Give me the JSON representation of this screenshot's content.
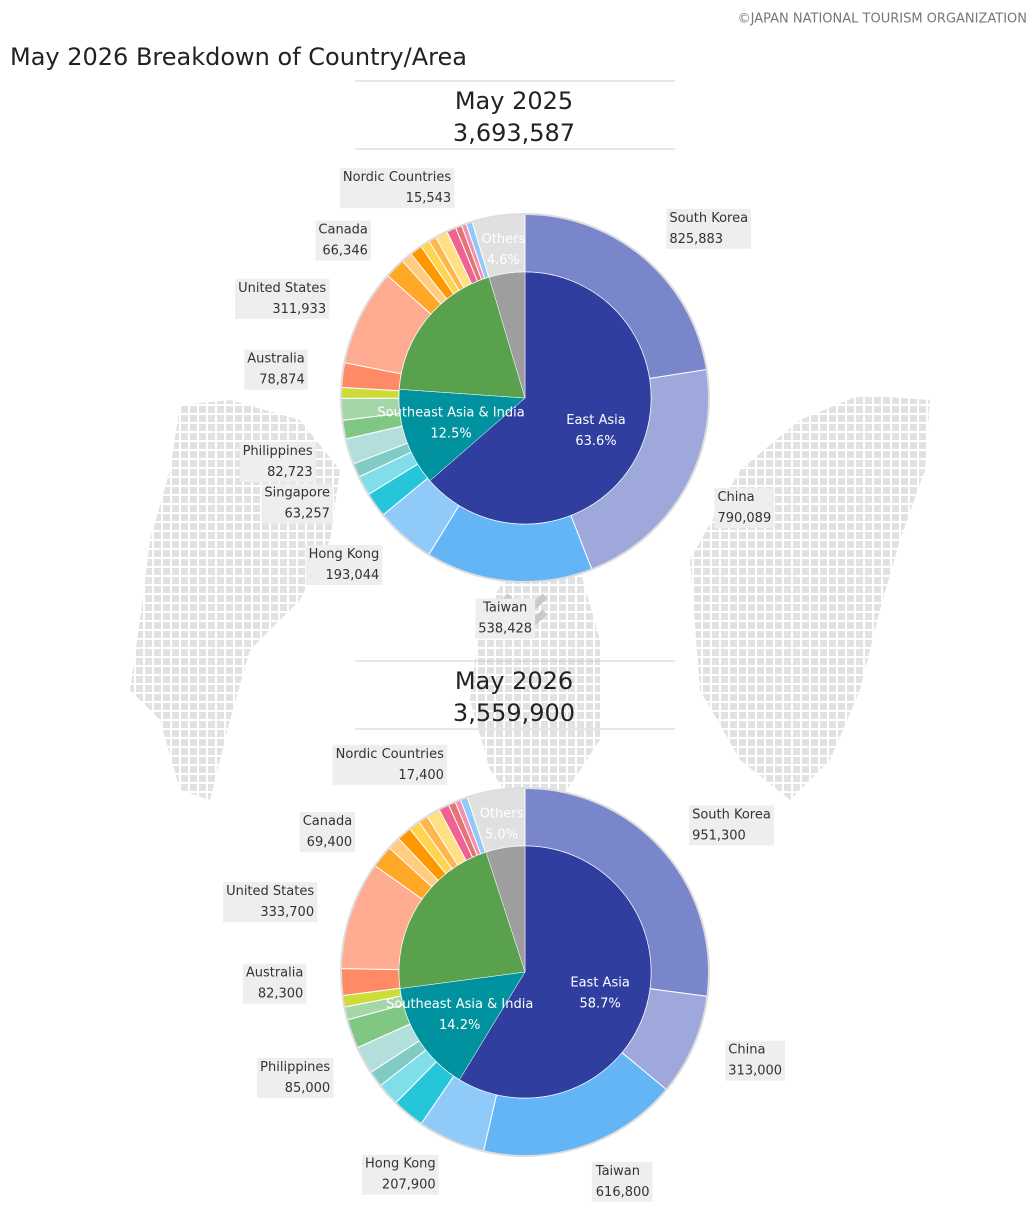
{
  "title": "May 2026 Breakdown of Country/Area",
  "credit": "©JAPAN NATIONAL TOURISM ORGANIZATION",
  "chart_data": [
    {
      "type": "sunburst",
      "heading": "May 2025",
      "total": {
        "value": 3693587,
        "label": "3,693,587"
      },
      "inner": {
        "categories": [
          "East Asia",
          "Southeast Asia & India",
          null,
          "Others"
        ],
        "values": [
          63.6,
          12.5,
          19.3,
          4.6
        ],
        "value_labels": [
          "63.6%",
          "12.5%",
          null,
          "4.6%"
        ],
        "colors": [
          "#303f9f",
          "#00939f",
          "#5aa14e",
          "#9e9e9e"
        ]
      },
      "outer": {
        "categories": [
          "South Korea",
          "China",
          "Taiwan",
          "Hong Kong",
          null,
          "Singapore",
          null,
          "Philippines",
          null,
          null,
          null,
          "Australia",
          "United States",
          "Canada",
          null,
          null,
          null,
          null,
          null,
          null,
          null,
          "Nordic Countries",
          null,
          null
        ],
        "values": [
          825883,
          790089,
          538428,
          193044,
          80000,
          63257,
          45000,
          82723,
          60000,
          70000,
          35000,
          78874,
          311933,
          66346,
          35000,
          40000,
          30000,
          25000,
          40000,
          30000,
          20000,
          15543,
          20000,
          170000
        ],
        "value_labels": [
          "825,883",
          "790,089",
          "538,428",
          "193,044",
          null,
          "63,257",
          null,
          "82,723",
          null,
          null,
          null,
          "78,874",
          "311,933",
          "66,346",
          null,
          null,
          null,
          null,
          null,
          null,
          null,
          "15,543",
          null,
          null
        ],
        "colors": [
          "#7986cb",
          "#9fa8da",
          "#64b5f6",
          "#90caf9",
          "#26c6da",
          "#80deea",
          "#80cbc4",
          "#b2dfdb",
          "#81c784",
          "#a5d6a7",
          "#cddc39",
          "#ff8a65",
          "#ffab91",
          "#ffa726",
          "#ffcc80",
          "#ff9800",
          "#ffd54f",
          "#ffb74d",
          "#ffe082",
          "#f06292",
          "#e57373",
          "#f48fb1",
          "#90caf9",
          "#e0e0e0"
        ]
      }
    },
    {
      "type": "sunburst",
      "heading": "May 2026",
      "total": {
        "value": 3559900,
        "label": "3,559,900"
      },
      "inner": {
        "categories": [
          "East Asia",
          "Southeast Asia & India",
          null,
          "Others"
        ],
        "values": [
          58.7,
          14.2,
          22.1,
          5
        ],
        "value_labels": [
          "58.7%",
          "14.2%",
          null,
          "5.0%"
        ],
        "colors": [
          "#303f9f",
          "#00939f",
          "#5aa14e",
          "#9e9e9e"
        ]
      },
      "outer": {
        "categories": [
          "South Korea",
          "China",
          "Taiwan",
          "Hong Kong",
          null,
          null,
          null,
          "Philippines",
          null,
          null,
          null,
          "Australia",
          "United States",
          "Canada",
          null,
          null,
          null,
          null,
          null,
          null,
          null,
          "Nordic Countries",
          null,
          null
        ],
        "values": [
          951300,
          313000,
          616800,
          207900,
          100000,
          70000,
          50000,
          85000,
          90000,
          40000,
          35000,
          82300,
          333700,
          69400,
          40000,
          45000,
          35000,
          30000,
          42000,
          32000,
          22000,
          17400,
          22000,
          178000
        ],
        "value_labels": [
          "951,300",
          "313,000",
          "616,800",
          "207,900",
          null,
          null,
          null,
          "85,000",
          null,
          null,
          null,
          "82,300",
          "333,700",
          "69,400",
          null,
          null,
          null,
          null,
          null,
          null,
          null,
          "17,400",
          null,
          null
        ],
        "colors": [
          "#7986cb",
          "#9fa8da",
          "#64b5f6",
          "#90caf9",
          "#26c6da",
          "#80deea",
          "#80cbc4",
          "#b2dfdb",
          "#81c784",
          "#a5d6a7",
          "#cddc39",
          "#ff8a65",
          "#ffab91",
          "#ffa726",
          "#ffcc80",
          "#ff9800",
          "#ffd54f",
          "#ffb74d",
          "#ffe082",
          "#f06292",
          "#e57373",
          "#f48fb1",
          "#90caf9",
          "#e0e0e0"
        ]
      }
    }
  ]
}
